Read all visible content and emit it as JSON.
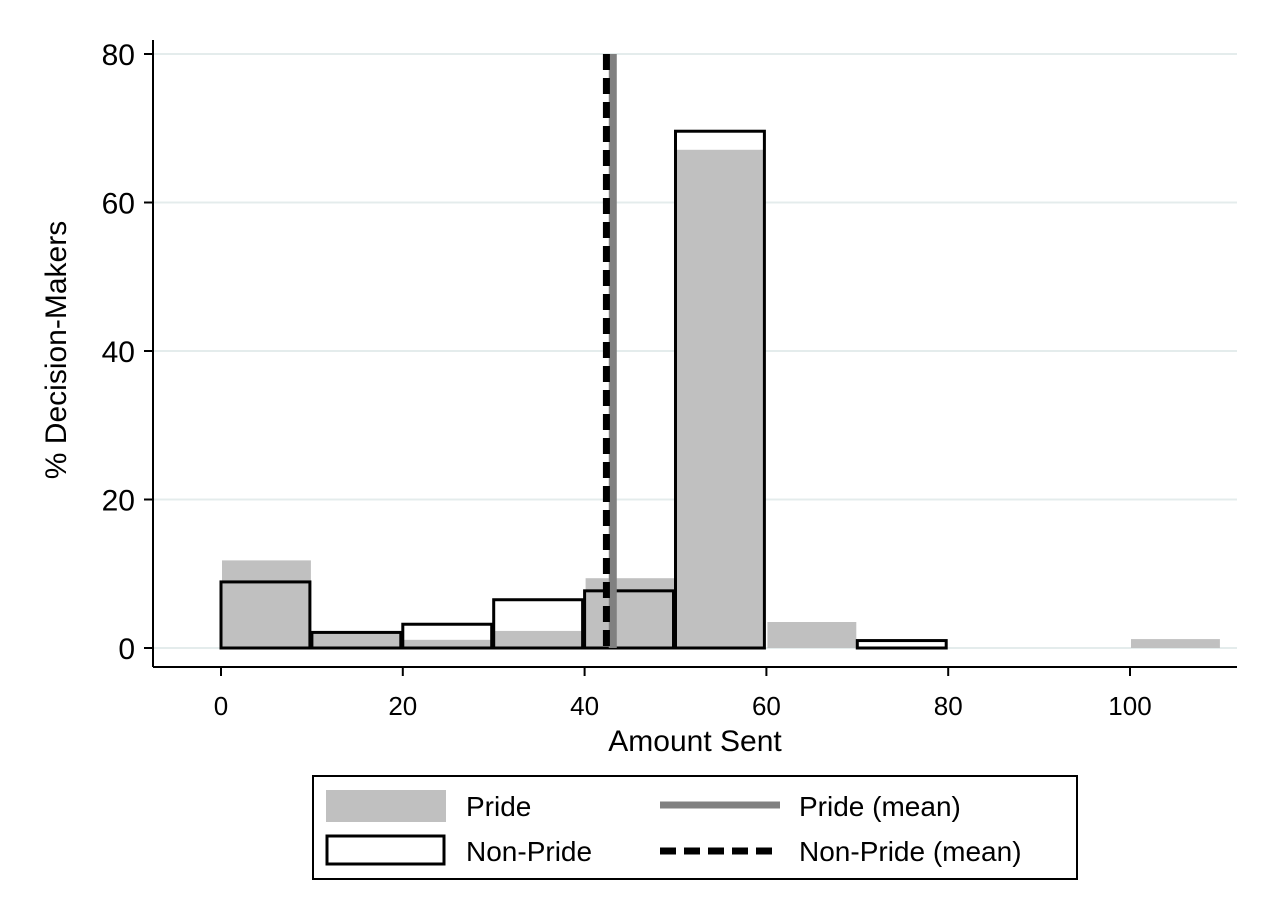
{
  "chart_data": {
    "type": "bar",
    "xlabel": "Amount Sent",
    "ylabel": "% Decision-Makers",
    "xlim": [
      -7.5,
      112
    ],
    "ylim": [
      -2.5,
      80
    ],
    "x_ticks": [
      "0",
      "20",
      "40",
      "60",
      "80",
      "100"
    ],
    "y_ticks": [
      "0",
      "20",
      "40",
      "60",
      "80"
    ],
    "grid": true,
    "bin_width": 10,
    "bins": [
      0,
      10,
      20,
      30,
      40,
      50,
      60,
      70,
      80,
      90,
      100
    ],
    "series": [
      {
        "name": "Pride",
        "style": "filled",
        "color": "#c0c0c0",
        "values": [
          11.8,
          2.1,
          1.1,
          2.3,
          9.4,
          67.1,
          3.5,
          0,
          0,
          0,
          1.2
        ]
      },
      {
        "name": "Non-Pride",
        "style": "outline",
        "color": "#000000",
        "values": [
          8.9,
          2.1,
          3.2,
          6.5,
          7.7,
          69.6,
          0,
          1.0,
          0,
          0,
          0
        ]
      }
    ],
    "reference_lines": [
      {
        "name": "Pride (mean)",
        "x": 43.1,
        "color": "#808080",
        "style": "solid"
      },
      {
        "name": "Non-Pride (mean)",
        "x": 42.4,
        "color": "#000000",
        "style": "dashed"
      }
    ],
    "legend": {
      "position": "bottom",
      "entries": [
        "Pride",
        "Pride (mean)",
        "Non-Pride",
        "Non-Pride (mean)"
      ]
    }
  }
}
